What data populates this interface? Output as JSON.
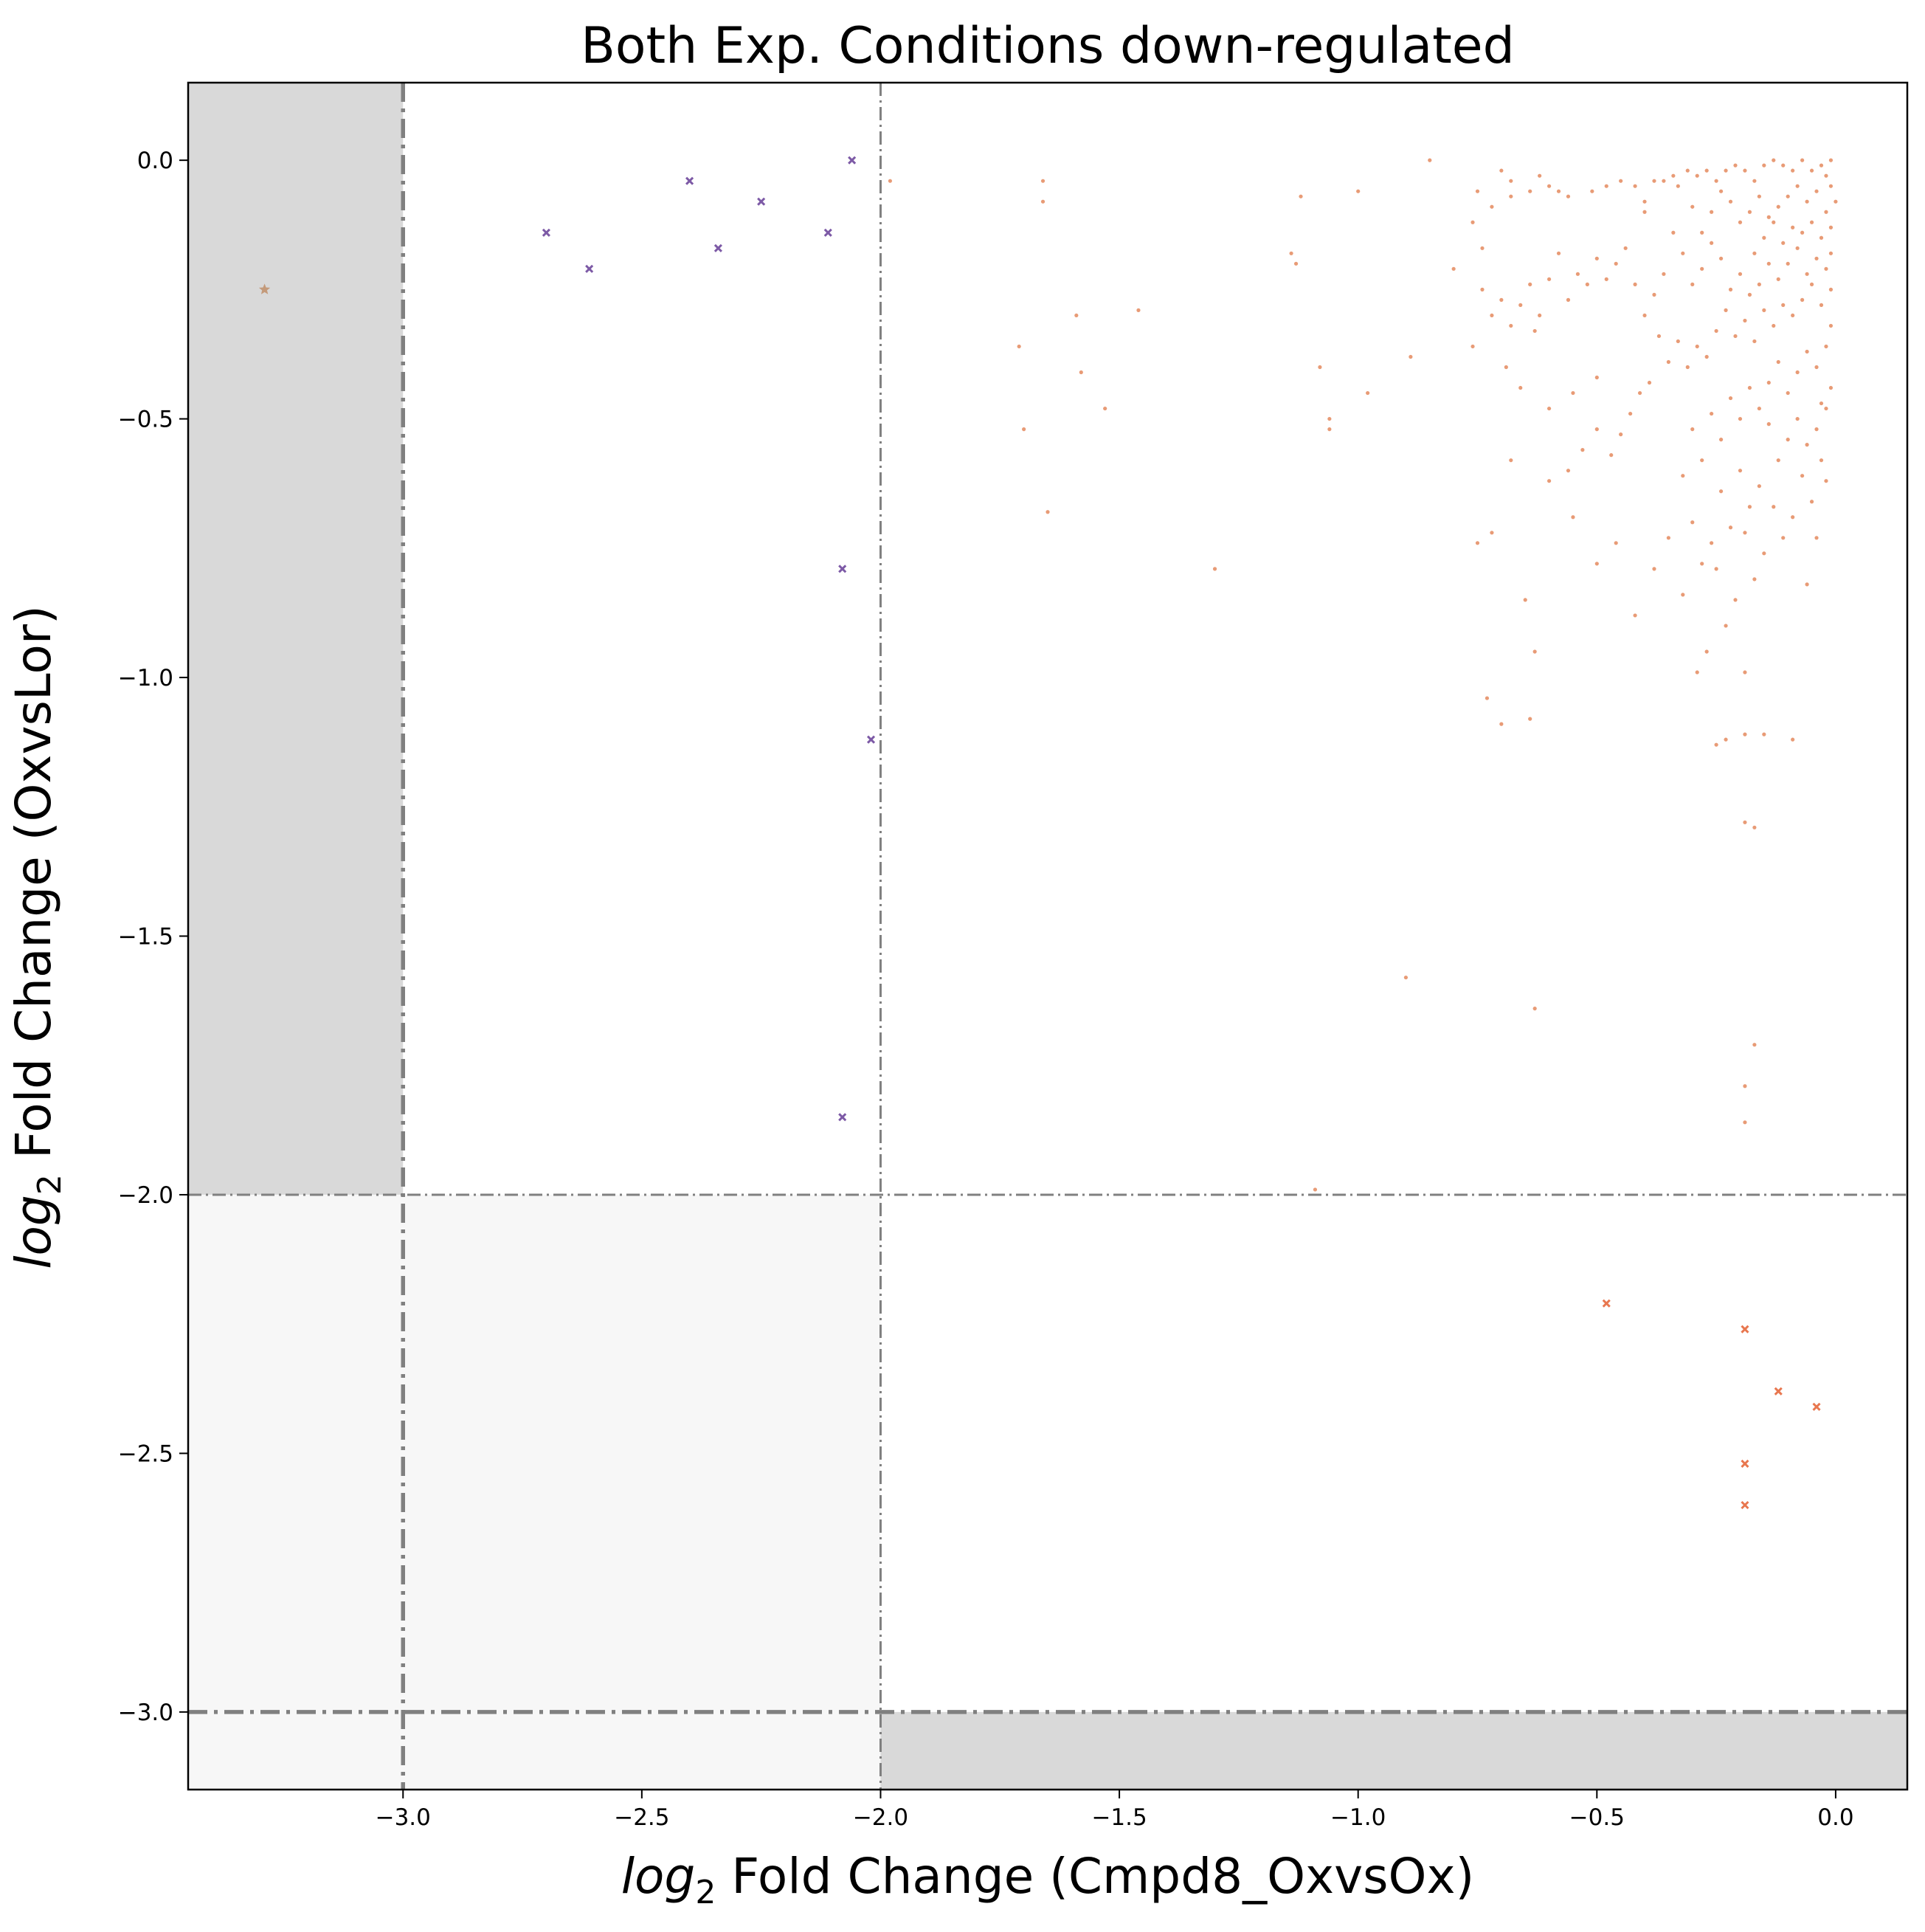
{
  "chart_data": {
    "type": "scatter",
    "title": "Both Exp. Conditions down-regulated",
    "xlabel_prefix": "log",
    "xlabel_sub": "2",
    "xlabel_rest": " Fold Change (Cmpd8_OxvsOx)",
    "ylabel_prefix": "log",
    "ylabel_sub": "2",
    "ylabel_rest": " Fold Change (OxvsLor)",
    "xlim": [
      -3.45,
      0.15
    ],
    "ylim": [
      -3.15,
      0.15
    ],
    "xticks": [
      -3.0,
      -2.5,
      -2.0,
      -1.5,
      -1.0,
      -0.5,
      0.0
    ],
    "xtick_labels": [
      "−3.0",
      "−2.5",
      "−2.0",
      "−1.5",
      "−1.0",
      "−0.5",
      "0.0"
    ],
    "yticks": [
      0.0,
      -0.5,
      -1.0,
      -1.5,
      -2.0,
      -2.5,
      -3.0
    ],
    "ytick_labels": [
      "0.0",
      "−0.5",
      "−1.0",
      "−1.5",
      "−2.0",
      "−2.5",
      "−3.0"
    ],
    "grid": false,
    "thresholds": {
      "thin": {
        "x": -2.0,
        "y": -2.0
      },
      "thick": {
        "x": -3.0,
        "y": -3.0
      }
    },
    "shaded_regions": {
      "dark_color": "#d9d9d9",
      "light_color": "#f7f7f7"
    },
    "colors": {
      "purple": "#7d5aa6",
      "orange": "#e8774f",
      "small": "#e4895e",
      "tan": "#c49a7a",
      "threshold_line": "#808080"
    },
    "series": [
      {
        "marker": "x",
        "color": "purple",
        "points": [
          [
            -2.7,
            -0.14
          ],
          [
            -2.61,
            -0.21
          ],
          [
            -2.4,
            -0.04
          ],
          [
            -2.34,
            -0.17
          ],
          [
            -2.25,
            -0.08
          ],
          [
            -2.11,
            -0.14
          ],
          [
            -2.06,
            0.0
          ],
          [
            -2.08,
            -0.79
          ],
          [
            -2.02,
            -1.12
          ],
          [
            -2.08,
            -1.85
          ]
        ]
      },
      {
        "marker": "x",
        "color": "orange",
        "points": [
          [
            -0.48,
            -2.21
          ],
          [
            -0.19,
            -2.26
          ],
          [
            -0.12,
            -2.38
          ],
          [
            -0.04,
            -2.41
          ],
          [
            -0.19,
            -2.52
          ],
          [
            -0.19,
            -2.6
          ]
        ]
      },
      {
        "marker": "star",
        "color": "tan",
        "points": [
          [
            -3.29,
            -0.25
          ]
        ]
      },
      {
        "marker": "dot",
        "color": "small",
        "points": [
          [
            -1.98,
            -0.04
          ],
          [
            -1.66,
            -0.04
          ],
          [
            -1.66,
            -0.08
          ],
          [
            -1.71,
            -0.36
          ],
          [
            -1.7,
            -0.52
          ],
          [
            -1.59,
            -0.3
          ],
          [
            -1.58,
            -0.41
          ],
          [
            -1.53,
            -0.48
          ],
          [
            -1.46,
            -0.29
          ],
          [
            -1.65,
            -0.68
          ],
          [
            -1.3,
            -0.79
          ],
          [
            -1.14,
            -0.18
          ],
          [
            -1.13,
            -0.2
          ],
          [
            -1.12,
            -0.07
          ],
          [
            -1.0,
            -0.06
          ],
          [
            -1.08,
            -0.4
          ],
          [
            -1.06,
            -0.5
          ],
          [
            -1.06,
            -0.52
          ],
          [
            -0.98,
            -0.45
          ],
          [
            -0.85,
            0.0
          ],
          [
            -0.89,
            -0.38
          ],
          [
            -0.8,
            -0.21
          ],
          [
            -0.9,
            -1.58
          ],
          [
            -1.09,
            -1.99
          ],
          [
            -0.75,
            -0.06
          ],
          [
            -0.76,
            -0.12
          ],
          [
            -0.74,
            -0.17
          ],
          [
            -0.72,
            -0.09
          ],
          [
            -0.7,
            -0.02
          ],
          [
            -0.68,
            -0.04
          ],
          [
            -0.68,
            -0.07
          ],
          [
            -0.64,
            -0.06
          ],
          [
            -0.6,
            -0.05
          ],
          [
            -0.58,
            -0.06
          ],
          [
            -0.56,
            -0.07
          ],
          [
            -0.62,
            -0.03
          ],
          [
            -0.51,
            -0.06
          ],
          [
            -0.48,
            -0.05
          ],
          [
            -0.45,
            -0.04
          ],
          [
            -0.42,
            -0.05
          ],
          [
            -0.4,
            -0.08
          ],
          [
            -0.4,
            -0.1
          ],
          [
            -0.38,
            -0.04
          ],
          [
            -0.36,
            -0.04
          ],
          [
            -0.34,
            -0.03
          ],
          [
            -0.33,
            -0.05
          ],
          [
            -0.31,
            -0.02
          ],
          [
            -0.29,
            -0.03
          ],
          [
            -0.27,
            -0.02
          ],
          [
            -0.25,
            -0.04
          ],
          [
            -0.23,
            -0.02
          ],
          [
            -0.21,
            -0.01
          ],
          [
            -0.19,
            -0.02
          ],
          [
            -0.17,
            -0.04
          ],
          [
            -0.15,
            -0.01
          ],
          [
            -0.13,
            0.0
          ],
          [
            -0.11,
            -0.01
          ],
          [
            -0.09,
            -0.02
          ],
          [
            -0.07,
            0.0
          ],
          [
            -0.05,
            -0.02
          ],
          [
            -0.03,
            -0.01
          ],
          [
            -0.02,
            -0.03
          ],
          [
            -0.01,
            0.0
          ],
          [
            -0.01,
            -0.05
          ],
          [
            0.0,
            -0.08
          ],
          [
            -0.02,
            -0.1
          ],
          [
            -0.04,
            -0.06
          ],
          [
            -0.06,
            -0.08
          ],
          [
            -0.08,
            -0.05
          ],
          [
            -0.1,
            -0.07
          ],
          [
            -0.12,
            -0.09
          ],
          [
            -0.14,
            -0.11
          ],
          [
            -0.16,
            -0.07
          ],
          [
            -0.18,
            -0.1
          ],
          [
            -0.2,
            -0.12
          ],
          [
            -0.22,
            -0.08
          ],
          [
            -0.24,
            -0.06
          ],
          [
            -0.26,
            -0.1
          ],
          [
            -0.28,
            -0.14
          ],
          [
            -0.3,
            -0.09
          ],
          [
            -0.05,
            -0.12
          ],
          [
            -0.03,
            -0.15
          ],
          [
            -0.07,
            -0.14
          ],
          [
            -0.09,
            -0.13
          ],
          [
            -0.11,
            -0.16
          ],
          [
            -0.13,
            -0.12
          ],
          [
            -0.15,
            -0.15
          ],
          [
            -0.17,
            -0.18
          ],
          [
            -0.01,
            -0.18
          ],
          [
            -0.02,
            -0.21
          ],
          [
            -0.04,
            -0.19
          ],
          [
            -0.06,
            -0.22
          ],
          [
            -0.08,
            -0.17
          ],
          [
            -0.1,
            -0.2
          ],
          [
            -0.12,
            -0.23
          ],
          [
            -0.14,
            -0.2
          ],
          [
            -0.16,
            -0.24
          ],
          [
            -0.18,
            -0.26
          ],
          [
            -0.2,
            -0.22
          ],
          [
            -0.22,
            -0.25
          ],
          [
            -0.24,
            -0.19
          ],
          [
            -0.26,
            -0.16
          ],
          [
            -0.28,
            -0.21
          ],
          [
            -0.3,
            -0.24
          ],
          [
            -0.32,
            -0.18
          ],
          [
            -0.34,
            -0.14
          ],
          [
            -0.36,
            -0.22
          ],
          [
            -0.38,
            -0.26
          ],
          [
            -0.4,
            -0.3
          ],
          [
            -0.42,
            -0.24
          ],
          [
            -0.44,
            -0.17
          ],
          [
            -0.46,
            -0.2
          ],
          [
            -0.48,
            -0.23
          ],
          [
            -0.5,
            -0.19
          ],
          [
            -0.52,
            -0.24
          ],
          [
            -0.54,
            -0.22
          ],
          [
            -0.56,
            -0.27
          ],
          [
            -0.58,
            -0.18
          ],
          [
            -0.6,
            -0.23
          ],
          [
            -0.62,
            -0.3
          ],
          [
            -0.64,
            -0.24
          ],
          [
            -0.66,
            -0.28
          ],
          [
            -0.68,
            -0.32
          ],
          [
            -0.7,
            -0.27
          ],
          [
            -0.72,
            -0.3
          ],
          [
            -0.74,
            -0.25
          ],
          [
            -0.76,
            -0.36
          ],
          [
            -0.69,
            -0.4
          ],
          [
            -0.66,
            -0.44
          ],
          [
            -0.63,
            -0.33
          ],
          [
            -0.01,
            -0.25
          ],
          [
            -0.03,
            -0.28
          ],
          [
            -0.05,
            -0.24
          ],
          [
            -0.07,
            -0.27
          ],
          [
            -0.09,
            -0.3
          ],
          [
            -0.11,
            -0.28
          ],
          [
            -0.13,
            -0.32
          ],
          [
            -0.15,
            -0.29
          ],
          [
            -0.17,
            -0.35
          ],
          [
            -0.19,
            -0.31
          ],
          [
            -0.21,
            -0.34
          ],
          [
            -0.23,
            -0.29
          ],
          [
            -0.25,
            -0.33
          ],
          [
            -0.27,
            -0.38
          ],
          [
            -0.29,
            -0.36
          ],
          [
            -0.31,
            -0.4
          ],
          [
            -0.33,
            -0.35
          ],
          [
            -0.35,
            -0.39
          ],
          [
            -0.37,
            -0.34
          ],
          [
            -0.39,
            -0.43
          ],
          [
            -0.41,
            -0.45
          ],
          [
            -0.43,
            -0.49
          ],
          [
            -0.45,
            -0.53
          ],
          [
            -0.47,
            -0.57
          ],
          [
            -0.5,
            -0.52
          ],
          [
            -0.53,
            -0.56
          ],
          [
            -0.56,
            -0.6
          ],
          [
            -0.6,
            -0.48
          ],
          [
            -0.55,
            -0.45
          ],
          [
            -0.5,
            -0.42
          ],
          [
            -0.01,
            -0.32
          ],
          [
            -0.02,
            -0.36
          ],
          [
            -0.04,
            -0.4
          ],
          [
            -0.06,
            -0.37
          ],
          [
            -0.08,
            -0.41
          ],
          [
            -0.1,
            -0.45
          ],
          [
            -0.12,
            -0.39
          ],
          [
            -0.14,
            -0.43
          ],
          [
            -0.16,
            -0.48
          ],
          [
            -0.18,
            -0.44
          ],
          [
            -0.2,
            -0.5
          ],
          [
            -0.22,
            -0.46
          ],
          [
            -0.24,
            -0.54
          ],
          [
            -0.26,
            -0.49
          ],
          [
            -0.28,
            -0.58
          ],
          [
            -0.3,
            -0.52
          ],
          [
            -0.32,
            -0.61
          ],
          [
            -0.02,
            -0.48
          ],
          [
            -0.04,
            -0.52
          ],
          [
            -0.06,
            -0.55
          ],
          [
            -0.08,
            -0.5
          ],
          [
            -0.1,
            -0.54
          ],
          [
            -0.12,
            -0.58
          ],
          [
            -0.14,
            -0.51
          ],
          [
            -0.16,
            -0.63
          ],
          [
            -0.18,
            -0.67
          ],
          [
            -0.2,
            -0.6
          ],
          [
            -0.22,
            -0.71
          ],
          [
            -0.24,
            -0.64
          ],
          [
            -0.26,
            -0.74
          ],
          [
            -0.28,
            -0.78
          ],
          [
            -0.3,
            -0.7
          ],
          [
            -0.02,
            -0.62
          ],
          [
            -0.03,
            -0.58
          ],
          [
            -0.05,
            -0.66
          ],
          [
            -0.07,
            -0.61
          ],
          [
            -0.09,
            -0.69
          ],
          [
            -0.11,
            -0.73
          ],
          [
            -0.13,
            -0.67
          ],
          [
            -0.15,
            -0.76
          ],
          [
            -0.17,
            -0.81
          ],
          [
            -0.19,
            -0.72
          ],
          [
            -0.21,
            -0.85
          ],
          [
            -0.23,
            -0.9
          ],
          [
            -0.25,
            -0.79
          ],
          [
            -0.27,
            -0.95
          ],
          [
            -0.29,
            -0.99
          ],
          [
            -0.32,
            -0.84
          ],
          [
            -0.35,
            -0.73
          ],
          [
            -0.38,
            -0.79
          ],
          [
            -0.42,
            -0.88
          ],
          [
            -0.46,
            -0.74
          ],
          [
            -0.5,
            -0.78
          ],
          [
            -0.55,
            -0.69
          ],
          [
            -0.6,
            -0.62
          ],
          [
            -0.65,
            -0.85
          ],
          [
            -0.68,
            -0.58
          ],
          [
            -0.72,
            -0.72
          ],
          [
            -0.75,
            -0.74
          ],
          [
            -0.63,
            -0.95
          ],
          [
            -0.73,
            -1.04
          ],
          [
            -0.7,
            -1.09
          ],
          [
            -0.64,
            -1.08
          ],
          [
            -0.23,
            -1.12
          ],
          [
            -0.25,
            -1.13
          ],
          [
            -0.19,
            -1.11
          ],
          [
            -0.15,
            -1.11
          ],
          [
            -0.09,
            -1.12
          ],
          [
            -0.19,
            -0.99
          ],
          [
            -0.04,
            -0.73
          ],
          [
            -0.06,
            -0.82
          ],
          [
            -0.19,
            -1.28
          ],
          [
            -0.17,
            -1.29
          ],
          [
            -0.63,
            -1.64
          ],
          [
            -0.17,
            -1.71
          ],
          [
            -0.19,
            -1.79
          ],
          [
            -0.19,
            -1.86
          ],
          [
            -0.01,
            -0.44
          ],
          [
            -0.03,
            -0.47
          ],
          [
            -0.01,
            -0.13
          ]
        ]
      }
    ]
  }
}
